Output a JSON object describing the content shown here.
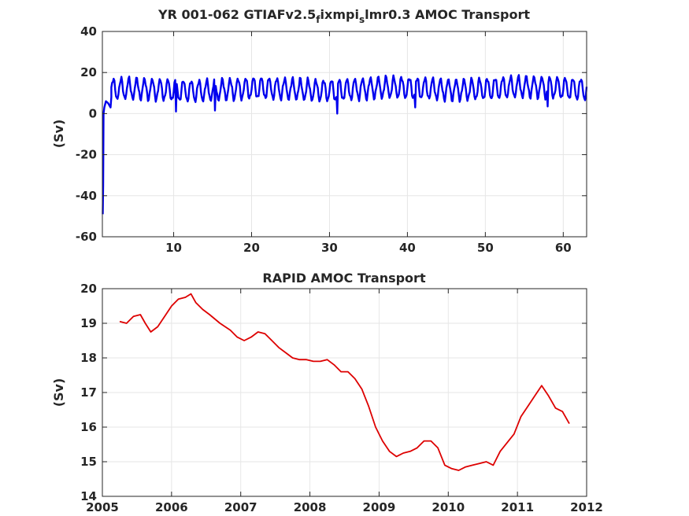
{
  "chart_data": [
    {
      "type": "line",
      "title": "YR 001-062 GTIAFv2.5",
      "title_sub1": "f",
      "title_mid": "ixmpi",
      "title_sub2": "s",
      "title_end": "lmr0.3 AMOC Transport",
      "xlabel": "",
      "ylabel": "(Sv)",
      "xlim": [
        0.85,
        63
      ],
      "ylim": [
        -60,
        40
      ],
      "xticks": [
        10,
        20,
        30,
        40,
        50,
        60
      ],
      "yticks": [
        40,
        20,
        0,
        -20,
        -40,
        -60
      ],
      "grid": true,
      "series": [
        {
          "color": "#0000ee",
          "generator": "seasonal",
          "start": [
            0.9,
            -49
          ],
          "spinup": [
            [
              0.95,
              -35
            ],
            [
              1.0,
              0
            ],
            [
              1.1,
              3
            ],
            [
              1.3,
              6
            ],
            [
              1.6,
              5
            ],
            [
              1.9,
              3
            ],
            [
              2.0,
              8
            ]
          ],
          "x_start": 2.0,
          "x_end": 63,
          "period": 1,
          "baseline": 11.5,
          "baseline_late": 12.5,
          "amplitude": 5,
          "min_spikes": [
            [
              10.3,
              1
            ],
            [
              15.3,
              1.5
            ],
            [
              31.0,
              0
            ],
            [
              41.0,
              3
            ],
            [
              58.0,
              3.5
            ]
          ]
        }
      ]
    },
    {
      "type": "line",
      "title": "RAPID AMOC Transport",
      "xlabel": "",
      "ylabel": "(Sv)",
      "xlim": [
        2005,
        2012
      ],
      "ylim": [
        14,
        20
      ],
      "xticks": [
        2005,
        2006,
        2007,
        2008,
        2009,
        2010,
        2011,
        2012
      ],
      "yticks": [
        20,
        19,
        18,
        17,
        16,
        15,
        14
      ],
      "grid": true,
      "series": [
        {
          "color": "#dd0000",
          "x": [
            2005.25,
            2005.35,
            2005.45,
            2005.55,
            2005.62,
            2005.7,
            2005.8,
            2005.9,
            2006.0,
            2006.1,
            2006.2,
            2006.28,
            2006.35,
            2006.45,
            2006.55,
            2006.7,
            2006.85,
            2006.95,
            2007.05,
            2007.15,
            2007.25,
            2007.35,
            2007.45,
            2007.55,
            2007.65,
            2007.75,
            2007.85,
            2007.95,
            2008.05,
            2008.15,
            2008.25,
            2008.35,
            2008.45,
            2008.55,
            2008.65,
            2008.75,
            2008.85,
            2008.95,
            2009.05,
            2009.15,
            2009.25,
            2009.35,
            2009.45,
            2009.55,
            2009.65,
            2009.75,
            2009.85,
            2009.95,
            2010.05,
            2010.15,
            2010.25,
            2010.35,
            2010.45,
            2010.55,
            2010.65,
            2010.75,
            2010.85,
            2010.95,
            2011.05,
            2011.15,
            2011.25,
            2011.35,
            2011.45,
            2011.55,
            2011.65,
            2011.75
          ],
          "y": [
            19.05,
            19.0,
            19.2,
            19.25,
            19.0,
            18.75,
            18.9,
            19.2,
            19.5,
            19.7,
            19.75,
            19.85,
            19.6,
            19.4,
            19.25,
            19.0,
            18.8,
            18.6,
            18.5,
            18.6,
            18.75,
            18.7,
            18.5,
            18.3,
            18.15,
            18.0,
            17.95,
            17.95,
            17.9,
            17.9,
            17.95,
            17.8,
            17.6,
            17.6,
            17.4,
            17.1,
            16.6,
            16.0,
            15.6,
            15.3,
            15.15,
            15.25,
            15.3,
            15.4,
            15.6,
            15.6,
            15.4,
            14.9,
            14.8,
            14.75,
            14.85,
            14.9,
            14.95,
            15.0,
            14.9,
            15.3,
            15.55,
            15.8,
            16.3,
            16.6,
            16.9,
            17.2,
            16.9,
            16.55,
            16.45,
            16.1
          ]
        }
      ]
    }
  ]
}
